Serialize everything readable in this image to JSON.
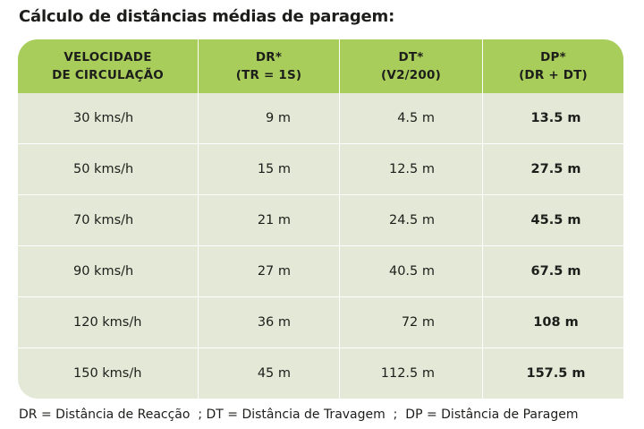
{
  "title": "Cálculo de distâncias médias de paragem:",
  "table": {
    "headers": [
      {
        "line1": "VELOCIDADE",
        "line2": "DE CIRCULAÇÃO"
      },
      {
        "line1": "DR*",
        "line2": "(TR = 1S)"
      },
      {
        "line1": "DT*",
        "line2": "(V2/200)"
      },
      {
        "line1": "DP*",
        "line2": "(DR + DT)"
      }
    ],
    "rows": [
      {
        "speed": "30 kms/h",
        "dr": "9 m",
        "dt": "4.5 m",
        "dp": "13.5 m"
      },
      {
        "speed": "50 kms/h",
        "dr": "15 m",
        "dt": "12.5 m",
        "dp": "27.5 m"
      },
      {
        "speed": "70 kms/h",
        "dr": "21 m",
        "dt": "24.5 m",
        "dp": "45.5 m"
      },
      {
        "speed": "90 kms/h",
        "dr": "27 m",
        "dt": "40.5 m",
        "dp": "67.5 m"
      },
      {
        "speed": "120 kms/h",
        "dr": "36 m",
        "dt": "72 m",
        "dp": "108 m"
      },
      {
        "speed": "150 kms/h",
        "dr": "45 m",
        "dt": "112.5 m",
        "dp": "157.5 m"
      }
    ]
  },
  "legend": "DR = Distância de Reacção  ; DT = Distância de Travagem  ;  DP = Distância de Paragem",
  "colors": {
    "header_bg": "#a8cd5a",
    "body_bg": "#e4e9d7",
    "divider": "#ffffff",
    "text": "#1d1d1b"
  }
}
